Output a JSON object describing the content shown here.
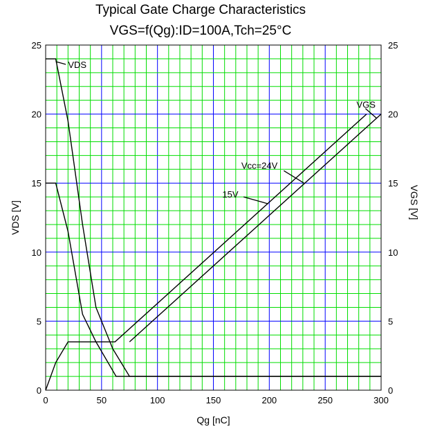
{
  "chart_data": {
    "type": "line",
    "title": "Typical Gate Charge Characteristics",
    "subtitle": "VGS=f(Qg):ID=100A,Tch=25°C",
    "xlabel": "Qg [nC]",
    "ylabel_left": "VDS [V]",
    "ylabel_right": "VGS [V]",
    "xlim": [
      0,
      300
    ],
    "ylim_left": [
      0,
      25
    ],
    "ylim_right": [
      0,
      25
    ],
    "x_ticks": [
      "0",
      "50",
      "100",
      "150",
      "200",
      "250",
      "300"
    ],
    "y_ticks_left": [
      "0",
      "5",
      "10",
      "15",
      "20",
      "25"
    ],
    "y_ticks_right": [
      "0",
      "5",
      "10",
      "15",
      "20",
      "25"
    ],
    "grid": true,
    "colors": {
      "major_grid": "#0000ff",
      "minor_grid": "#00dd00",
      "lines": "#000000"
    },
    "series": [
      {
        "axis": "left",
        "points": [
          [
            0,
            24
          ],
          [
            9,
            24
          ],
          [
            20,
            19.5
          ],
          [
            33,
            12
          ],
          [
            45,
            6
          ],
          [
            60,
            3
          ],
          [
            75,
            1
          ],
          [
            300,
            1
          ]
        ]
      },
      {
        "axis": "left",
        "points": [
          [
            0,
            15
          ],
          [
            9,
            15
          ],
          [
            20,
            11.5
          ],
          [
            33,
            5.5
          ],
          [
            45,
            3.5
          ],
          [
            63,
            1
          ],
          [
            300,
            1
          ]
        ]
      },
      {
        "axis": "right",
        "points": [
          [
            0,
            0
          ],
          [
            9,
            2
          ],
          [
            20,
            3.5
          ],
          [
            62,
            3.5
          ],
          [
            287,
            20
          ]
        ]
      },
      {
        "axis": "right",
        "points": [
          [
            75,
            3.5
          ],
          [
            300,
            20
          ]
        ]
      }
    ],
    "annotations": [
      {
        "text": "VDS",
        "x": 20,
        "y": 23.6,
        "leader": [
          [
            9,
            23.8
          ],
          [
            18,
            23.6
          ]
        ]
      },
      {
        "text": "VGS",
        "x": 278,
        "y": 20.7,
        "leader": [
          [
            286,
            20.4
          ],
          [
            296,
            19.7
          ]
        ]
      },
      {
        "text": "Vcc=24V",
        "x": 175,
        "y": 16.3,
        "leader": [
          [
            213,
            15.9
          ],
          [
            231,
            15
          ]
        ]
      },
      {
        "text": "15V",
        "x": 158,
        "y": 14.2,
        "leader": [
          [
            177,
            14
          ],
          [
            199,
            13.5
          ]
        ]
      }
    ]
  }
}
